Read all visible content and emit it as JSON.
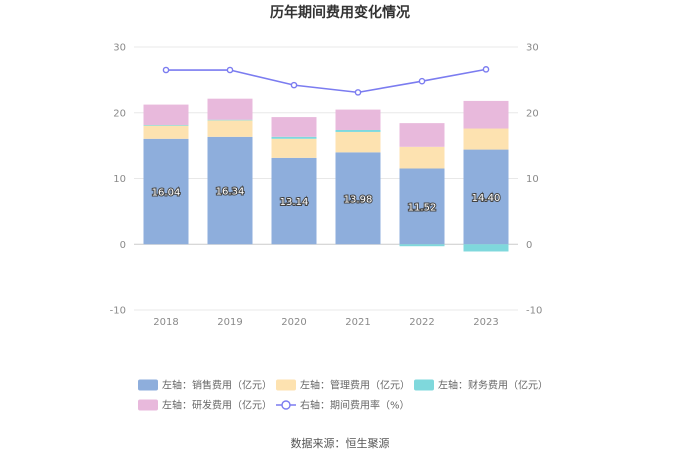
{
  "chart_data": {
    "type": "bar",
    "title": "历年期间费用变化情况",
    "categories": [
      "2018",
      "2019",
      "2020",
      "2021",
      "2022",
      "2023"
    ],
    "series": [
      {
        "name": "左轴：销售费用（亿元）",
        "axis": "left",
        "kind": "stacked-bar",
        "color": "#8eaedc",
        "values": [
          16.04,
          16.34,
          13.14,
          13.98,
          11.52,
          14.4
        ],
        "show_labels": true
      },
      {
        "name": "左轴：管理费用（亿元）",
        "axis": "left",
        "kind": "stacked-bar",
        "color": "#fde2b0",
        "values": [
          2.0,
          2.5,
          2.9,
          3.1,
          3.3,
          3.2
        ]
      },
      {
        "name": "左轴：财务费用（亿元）",
        "axis": "left",
        "kind": "stacked-bar",
        "color": "#7fd8dc",
        "values": [
          0.1,
          0.1,
          0.3,
          0.3,
          -0.3,
          -1.1
        ]
      },
      {
        "name": "左轴：研发费用（亿元）",
        "axis": "left",
        "kind": "stacked-bar",
        "color": "#e8b9dc",
        "values": [
          3.1,
          3.2,
          3.0,
          3.1,
          3.6,
          4.2
        ]
      },
      {
        "name": "右轴：期间费用率（%）",
        "axis": "right",
        "kind": "line",
        "color": "#7b7cf0",
        "values": [
          26.5,
          26.5,
          24.2,
          23.1,
          24.8,
          26.6
        ]
      }
    ],
    "left_axis": {
      "ylim": [
        -10,
        30
      ],
      "ticks": [
        -10,
        0,
        10,
        20,
        30
      ]
    },
    "right_axis": {
      "ylim": [
        -10,
        30
      ],
      "ticks": [
        -10,
        0,
        10,
        20,
        30
      ]
    },
    "legend_position": "bottom",
    "grid": true
  },
  "source_text": "数据来源：恒生聚源"
}
